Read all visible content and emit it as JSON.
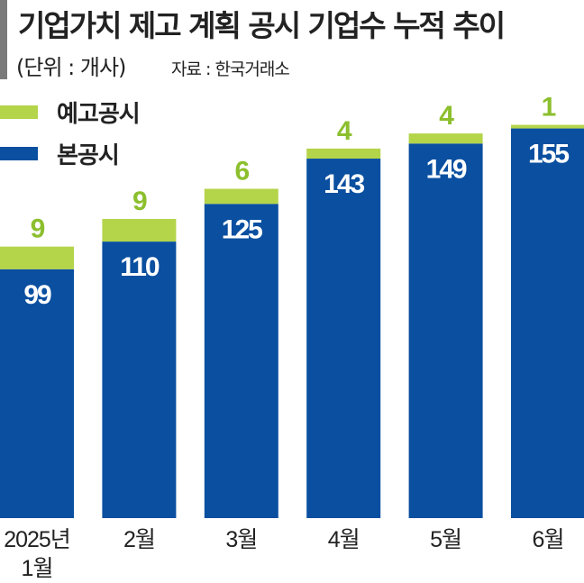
{
  "chart_data": {
    "type": "bar",
    "stacked": true,
    "title": "기업가치 제고 계획 공시 기업수 누적 추이",
    "unit": "(단위 : 개사)",
    "source": "자료 : 한국거래소",
    "categories": [
      [
        "2025년",
        "1월"
      ],
      [
        "2월"
      ],
      [
        "3월"
      ],
      [
        "4월"
      ],
      [
        "5월"
      ],
      [
        "6월"
      ]
    ],
    "series": [
      {
        "name": "본공시",
        "color": "#0a4fa0",
        "values": [
          99,
          110,
          125,
          143,
          149,
          155
        ]
      },
      {
        "name": "예고공시",
        "color": "#b4d44a",
        "values": [
          9,
          9,
          6,
          4,
          4,
          1
        ]
      }
    ],
    "legend": "top-left",
    "grid": false
  }
}
